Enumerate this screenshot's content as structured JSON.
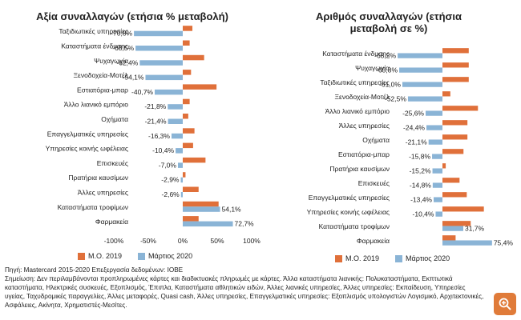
{
  "colors": {
    "mo2019": "#e0703a",
    "march2020": "#8ab4d6",
    "zoom_bg": "#e07b39"
  },
  "legend": {
    "mo2019": "Μ.Ο. 2019",
    "march2020": "Μάρτιος 2020"
  },
  "chart_data": [
    {
      "type": "bar",
      "title": "Αξία συναλλαγών (ετήσια % μεταβολή)",
      "orientation": "horizontal",
      "xlim": [
        -100,
        100
      ],
      "ticks": [
        "-100%",
        "-50%",
        "0%",
        "50%",
        "100%"
      ],
      "grid": false,
      "categories": [
        "Ταξιδιωτικές υπηρεσίες",
        "Καταστήματα ένδυσης",
        "Ψυχαγωγία",
        "Ξενοδοχεία-Μοτέλ",
        "Εστιατόρια-μπαρ",
        "Άλλο λιανικό εμπόριο",
        "Οχήματα",
        "Επαγγελματικές υπηρεσίες",
        "Υπηρεσίες κοινής ωφέλειας",
        "Επισκευές",
        "Πρατήρια καυσίμων",
        "Άλλες υπηρεσίες",
        "Καταστήματα τροφίμων",
        "Φαρμακεία"
      ],
      "series": [
        {
          "name": "Μ.Ο. 2019",
          "values": [
            14,
            10,
            31,
            12,
            49,
            10,
            8,
            17,
            15,
            33,
            4,
            23,
            52,
            23
          ]
        },
        {
          "name": "Μάρτιος 2020",
          "values": [
            -70.8,
            -68.5,
            -62.4,
            -54.1,
            -40.7,
            -21.8,
            -21.4,
            -16.3,
            -10.4,
            -7.0,
            -2.9,
            -2.6,
            54.1,
            72.7
          ]
        }
      ],
      "value_labels": [
        "-70,8%",
        "-68,5%",
        "-62,4%",
        "-54,1%",
        "-40,7%",
        "-21,8%",
        "-21,4%",
        "-16,3%",
        "-10,4%",
        "-7,0%",
        "-2,9%",
        "-2,6%",
        "54,1%",
        "72,7%"
      ]
    },
    {
      "type": "bar",
      "title": "Αριθμός συναλλαγών (ετήσια μεταβολή σε %)",
      "orientation": "horizontal",
      "xlim": [
        -100,
        100
      ],
      "ticks": [],
      "grid": false,
      "categories": [
        "Καταστήματα ένδυσης",
        "Ψυχαγωγία",
        "Ταξιδιωτικές υπηρεσίες",
        "Ξενοδοχεία-Μοτέλ",
        "Άλλο λιανικό εμπόριο",
        "Άλλες υπηρεσίες",
        "Οχήματα",
        "Εστιατόρια-μπαρ",
        "Πρατήρια καυσίμων",
        "Επισκευές",
        "Επαγγελματικές υπηρεσίες",
        "Υπηρεσίες κοινής ωφέλειας",
        "Καταστήματα τροφίμων",
        "Φαρμακεία"
      ],
      "series": [
        {
          "name": "Μ.Ο. 2019",
          "values": [
            40,
            40,
            40,
            12,
            54,
            38,
            38,
            32,
            5,
            26,
            37,
            63,
            43,
            20
          ]
        },
        {
          "name": "Μάρτιος 2020",
          "values": [
            -68.2,
            -65.8,
            -61.0,
            -52.5,
            -25.6,
            -24.4,
            -21.1,
            -15.8,
            -15.2,
            -14.8,
            -13.4,
            -10.4,
            31.7,
            75.4
          ]
        }
      ],
      "value_labels": [
        "-68,2%",
        "-65,8%",
        "-61,0%",
        "-52,5%",
        "-25,6%",
        "-24,4%",
        "-21,1%",
        "-15,8%",
        "-15,2%",
        "-14,8%",
        "-13,4%",
        "-10,4%",
        "31,7%",
        "75,4%"
      ]
    }
  ],
  "footer": {
    "source": "Πηγή: Mastercard 2015-2020 Επεξεργασία δεδομένων: ΙΟΒΕ",
    "notes": "Σημείωση: Δεν περιλαμβάνονται προπληρωμένες κάρτες και διαδικτυακές πληρωμές με κάρτες. Άλλα καταστήματα λιανικής: Πολυκαταστήματα, Εκπτωτικά καταστήματα, Ηλεκτρικές συσκευές, Εξοπλισμός, Έπιπλα, Καταστήματα αθλητικών ειδών, Άλλες λιανικές υπηρεσίες, Άλλες υπηρεσίες: Εκπαίδευση, Υπηρεσίες υγείας, Ταχυδρομικές παραγγελίες, Άλλες μεταφορές, Quasi cash, Άλλες υπηρεσίες, Επαγγελματικές υπηρεσίες: Εξοπλισμός υπολογιστών Λογισμικό, Αρχιτεκτονικές, Ασφάλειες, Ακίνητα, Χρηματιστές-Μεσίτες."
  },
  "zoom_button": {
    "icon": "zoom-in-icon"
  }
}
